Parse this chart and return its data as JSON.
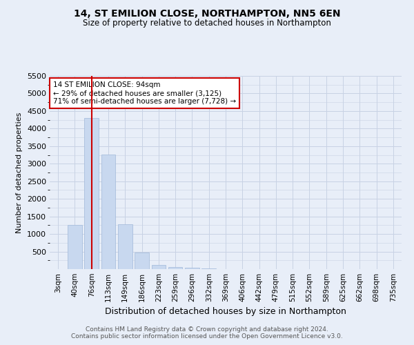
{
  "title": "14, ST EMILION CLOSE, NORTHAMPTON, NN5 6EN",
  "subtitle": "Size of property relative to detached houses in Northampton",
  "xlabel": "Distribution of detached houses by size in Northampton",
  "ylabel": "Number of detached properties",
  "footer_line1": "Contains HM Land Registry data © Crown copyright and database right 2024.",
  "footer_line2": "Contains public sector information licensed under the Open Government Licence v3.0.",
  "annotation_line1": "14 ST EMILION CLOSE: 94sqm",
  "annotation_line2": "← 29% of detached houses are smaller (3,125)",
  "annotation_line3": "71% of semi-detached houses are larger (7,728) →",
  "property_size_sqm": 94,
  "bar_color": "#c8d8ef",
  "bar_edge_color": "#a0b8d8",
  "marker_line_color": "#cc0000",
  "background_color": "#e8eef8",
  "annotation_box_color": "#ffffff",
  "annotation_box_edge": "#cc0000",
  "categories": [
    "3sqm",
    "40sqm",
    "76sqm",
    "113sqm",
    "149sqm",
    "186sqm",
    "223sqm",
    "259sqm",
    "296sqm",
    "332sqm",
    "369sqm",
    "406sqm",
    "442sqm",
    "479sqm",
    "515sqm",
    "552sqm",
    "589sqm",
    "625sqm",
    "662sqm",
    "698sqm",
    "735sqm"
  ],
  "bar_values": [
    0,
    1250,
    4300,
    3270,
    1280,
    470,
    110,
    55,
    30,
    12,
    5,
    2,
    0,
    0,
    0,
    0,
    0,
    0,
    0,
    0,
    0
  ],
  "ylim": [
    0,
    5500
  ],
  "yticks": [
    0,
    500,
    1000,
    1500,
    2000,
    2500,
    3000,
    3500,
    4000,
    4500,
    5000,
    5500
  ],
  "marker_bar_index": 2,
  "grid_color": "#c8d2e4"
}
